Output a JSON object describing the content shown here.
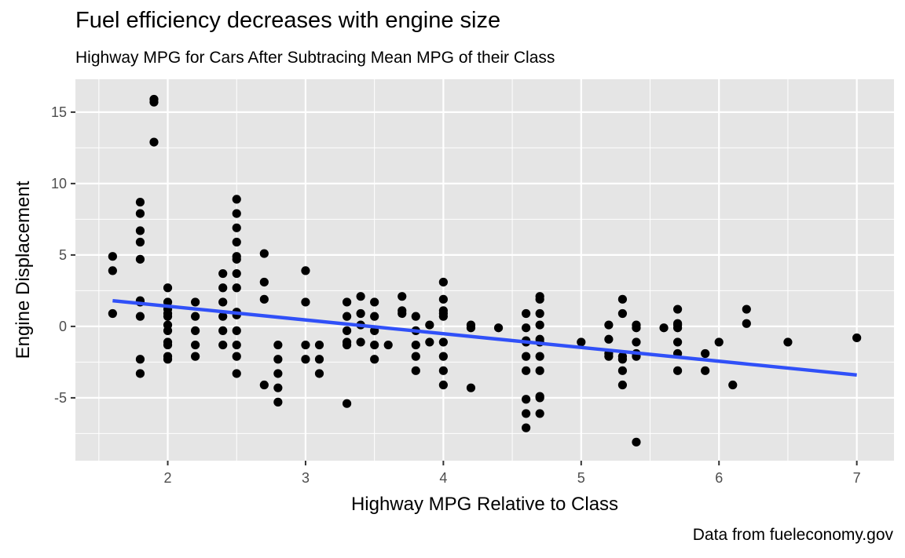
{
  "chart_data": {
    "type": "scatter",
    "title": "Fuel efficiency decreases with engine size",
    "subtitle": "Highway MPG for Cars After Subtracing Mean MPG of their Class",
    "caption": "Data from fueleconomy.gov",
    "xlabel": "Highway MPG Relative to Class",
    "ylabel": "Engine Displacement",
    "xlim": [
      1.33,
      7.27
    ],
    "ylim": [
      -9.4,
      17.3
    ],
    "x_ticks": [
      2,
      3,
      4,
      5,
      6,
      7
    ],
    "y_ticks": [
      -5,
      0,
      5,
      10,
      15
    ],
    "grid": true,
    "legend": "none",
    "colors": {
      "panel": "#e5e5e5",
      "grid": "#ffffff",
      "points": "#000000",
      "trend": "#3050f8"
    },
    "trend_line": {
      "x": [
        1.6,
        7.0
      ],
      "y": [
        1.8,
        -3.4
      ]
    },
    "points": [
      [
        1.6,
        4.9
      ],
      [
        1.6,
        3.9
      ],
      [
        1.6,
        0.9
      ],
      [
        1.8,
        8.7
      ],
      [
        1.8,
        7.9
      ],
      [
        1.8,
        6.7
      ],
      [
        1.8,
        5.9
      ],
      [
        1.8,
        4.7
      ],
      [
        1.8,
        1.8
      ],
      [
        1.8,
        1.7
      ],
      [
        1.8,
        0.7
      ],
      [
        1.8,
        -2.3
      ],
      [
        1.8,
        -3.3
      ],
      [
        1.9,
        15.9
      ],
      [
        1.9,
        15.7
      ],
      [
        1.9,
        12.9
      ],
      [
        2.0,
        2.7
      ],
      [
        2.0,
        1.7
      ],
      [
        2.0,
        1.2
      ],
      [
        2.0,
        0.9
      ],
      [
        2.0,
        0.7
      ],
      [
        2.0,
        0.1
      ],
      [
        2.0,
        -0.3
      ],
      [
        2.0,
        -1.1
      ],
      [
        2.0,
        -1.3
      ],
      [
        2.0,
        -2.1
      ],
      [
        2.0,
        -2.3
      ],
      [
        2.2,
        1.7
      ],
      [
        2.2,
        0.7
      ],
      [
        2.2,
        -0.3
      ],
      [
        2.2,
        -1.3
      ],
      [
        2.2,
        -2.1
      ],
      [
        2.4,
        3.7
      ],
      [
        2.4,
        2.7
      ],
      [
        2.4,
        1.7
      ],
      [
        2.4,
        0.7
      ],
      [
        2.4,
        -0.3
      ],
      [
        2.4,
        -1.3
      ],
      [
        2.5,
        8.9
      ],
      [
        2.5,
        7.9
      ],
      [
        2.5,
        6.9
      ],
      [
        2.5,
        5.9
      ],
      [
        2.5,
        4.9
      ],
      [
        2.5,
        4.7
      ],
      [
        2.5,
        3.7
      ],
      [
        2.5,
        2.7
      ],
      [
        2.5,
        1.0
      ],
      [
        2.5,
        0.8
      ],
      [
        2.5,
        -0.3
      ],
      [
        2.5,
        -1.3
      ],
      [
        2.5,
        -2.1
      ],
      [
        2.5,
        -3.3
      ],
      [
        2.7,
        5.1
      ],
      [
        2.7,
        3.1
      ],
      [
        2.7,
        1.9
      ],
      [
        2.7,
        -4.1
      ],
      [
        2.8,
        -1.3
      ],
      [
        2.8,
        -2.3
      ],
      [
        2.8,
        -3.3
      ],
      [
        2.8,
        -4.3
      ],
      [
        2.8,
        -5.3
      ],
      [
        3.0,
        3.9
      ],
      [
        3.0,
        1.7
      ],
      [
        3.0,
        -1.3
      ],
      [
        3.0,
        -2.3
      ],
      [
        3.1,
        -1.3
      ],
      [
        3.1,
        -2.3
      ],
      [
        3.1,
        -3.3
      ],
      [
        3.3,
        1.7
      ],
      [
        3.3,
        0.7
      ],
      [
        3.3,
        -0.3
      ],
      [
        3.3,
        -1.1
      ],
      [
        3.3,
        -1.3
      ],
      [
        3.3,
        -5.4
      ],
      [
        3.4,
        2.1
      ],
      [
        3.4,
        0.9
      ],
      [
        3.4,
        0.1
      ],
      [
        3.4,
        -1.1
      ],
      [
        3.5,
        1.7
      ],
      [
        3.5,
        0.7
      ],
      [
        3.5,
        -0.3
      ],
      [
        3.5,
        -1.3
      ],
      [
        3.5,
        -2.3
      ],
      [
        3.6,
        -1.3
      ],
      [
        3.7,
        2.1
      ],
      [
        3.7,
        1.1
      ],
      [
        3.7,
        0.9
      ],
      [
        3.8,
        0.7
      ],
      [
        3.8,
        -0.3
      ],
      [
        3.8,
        -1.3
      ],
      [
        3.8,
        -2.1
      ],
      [
        3.8,
        -3.1
      ],
      [
        3.9,
        0.1
      ],
      [
        3.9,
        -1.1
      ],
      [
        4.0,
        3.1
      ],
      [
        4.0,
        1.9
      ],
      [
        4.0,
        1.1
      ],
      [
        4.0,
        0.9
      ],
      [
        4.0,
        0.7
      ],
      [
        4.0,
        -1.1
      ],
      [
        4.0,
        -2.1
      ],
      [
        4.0,
        -3.1
      ],
      [
        4.0,
        -4.1
      ],
      [
        4.2,
        0.1
      ],
      [
        4.2,
        -0.1
      ],
      [
        4.2,
        -4.3
      ],
      [
        4.4,
        -0.1
      ],
      [
        4.6,
        0.9
      ],
      [
        4.6,
        -0.1
      ],
      [
        4.6,
        -1.0
      ],
      [
        4.6,
        -1.1
      ],
      [
        4.6,
        -2.1
      ],
      [
        4.6,
        -3.1
      ],
      [
        4.6,
        -5.1
      ],
      [
        4.6,
        -6.1
      ],
      [
        4.6,
        -7.1
      ],
      [
        4.7,
        2.1
      ],
      [
        4.7,
        1.9
      ],
      [
        4.7,
        0.9
      ],
      [
        4.7,
        0.1
      ],
      [
        4.7,
        -0.9
      ],
      [
        4.7,
        -1.1
      ],
      [
        4.7,
        -2.1
      ],
      [
        4.7,
        -3.1
      ],
      [
        4.7,
        -4.9
      ],
      [
        4.7,
        -5.0
      ],
      [
        4.7,
        -6.1
      ],
      [
        5.0,
        -1.1
      ],
      [
        5.2,
        0.1
      ],
      [
        5.2,
        -0.9
      ],
      [
        5.2,
        -1.9
      ],
      [
        5.2,
        -2.1
      ],
      [
        5.3,
        1.9
      ],
      [
        5.3,
        0.9
      ],
      [
        5.3,
        -2.1
      ],
      [
        5.3,
        -2.3
      ],
      [
        5.3,
        -3.1
      ],
      [
        5.3,
        -4.1
      ],
      [
        5.4,
        0.1
      ],
      [
        5.4,
        -0.1
      ],
      [
        5.4,
        -1.1
      ],
      [
        5.4,
        -1.9
      ],
      [
        5.4,
        -2.1
      ],
      [
        5.4,
        -8.1
      ],
      [
        5.6,
        -0.1
      ],
      [
        5.7,
        1.2
      ],
      [
        5.7,
        0.2
      ],
      [
        5.7,
        0.1
      ],
      [
        5.7,
        -0.1
      ],
      [
        5.7,
        -1.1
      ],
      [
        5.7,
        -1.9
      ],
      [
        5.7,
        -3.1
      ],
      [
        5.9,
        -1.9
      ],
      [
        5.9,
        -3.1
      ],
      [
        6.0,
        -1.1
      ],
      [
        6.1,
        -4.1
      ],
      [
        6.2,
        1.2
      ],
      [
        6.2,
        0.2
      ],
      [
        6.5,
        -1.1
      ],
      [
        7.0,
        -0.8
      ]
    ]
  }
}
